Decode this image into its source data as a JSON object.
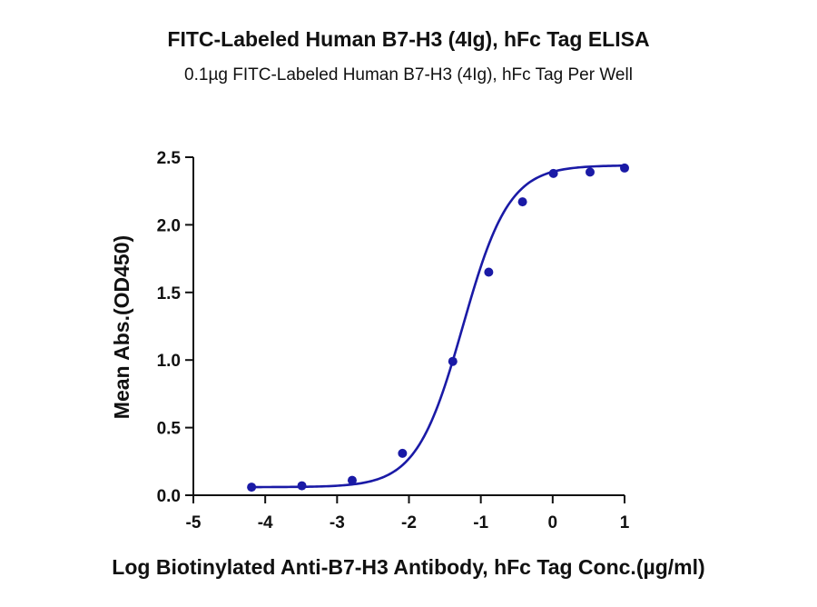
{
  "chart_data": {
    "type": "scatter",
    "title": "FITC-Labeled Human B7-H3 (4Ig), hFc Tag ELISA",
    "subtitle": "0.1µg FITC-Labeled Human B7-H3 (4Ig), hFc Tag Per Well",
    "xlabel": "Log Biotinylated Anti-B7-H3 Antibody, hFc Tag Conc.(µg/ml)",
    "ylabel": "Mean Abs.(OD450)",
    "xlim": [
      -5,
      1
    ],
    "ylim": [
      0,
      2.5
    ],
    "x_ticks": [
      "-5",
      "-4",
      "-3",
      "-2",
      "-1",
      "0",
      "1"
    ],
    "y_ticks": [
      "0.0",
      "0.5",
      "1.0",
      "1.5",
      "2.0",
      "2.5"
    ],
    "grid": false,
    "color": "#1a1aa6",
    "series": [
      {
        "points": [
          [
            -4.19,
            0.06
          ],
          [
            -3.49,
            0.07
          ],
          [
            -2.79,
            0.11
          ],
          [
            -2.09,
            0.31
          ],
          [
            -1.39,
            0.99
          ],
          [
            -0.89,
            1.65
          ],
          [
            -0.42,
            2.17
          ],
          [
            0.01,
            2.38
          ],
          [
            0.52,
            2.39
          ],
          [
            1.0,
            2.42
          ]
        ],
        "fit": {
          "model": "4PL",
          "bottom": 0.06,
          "top": 2.44,
          "logEC50": -1.25,
          "hill": 1.35
        }
      }
    ]
  }
}
